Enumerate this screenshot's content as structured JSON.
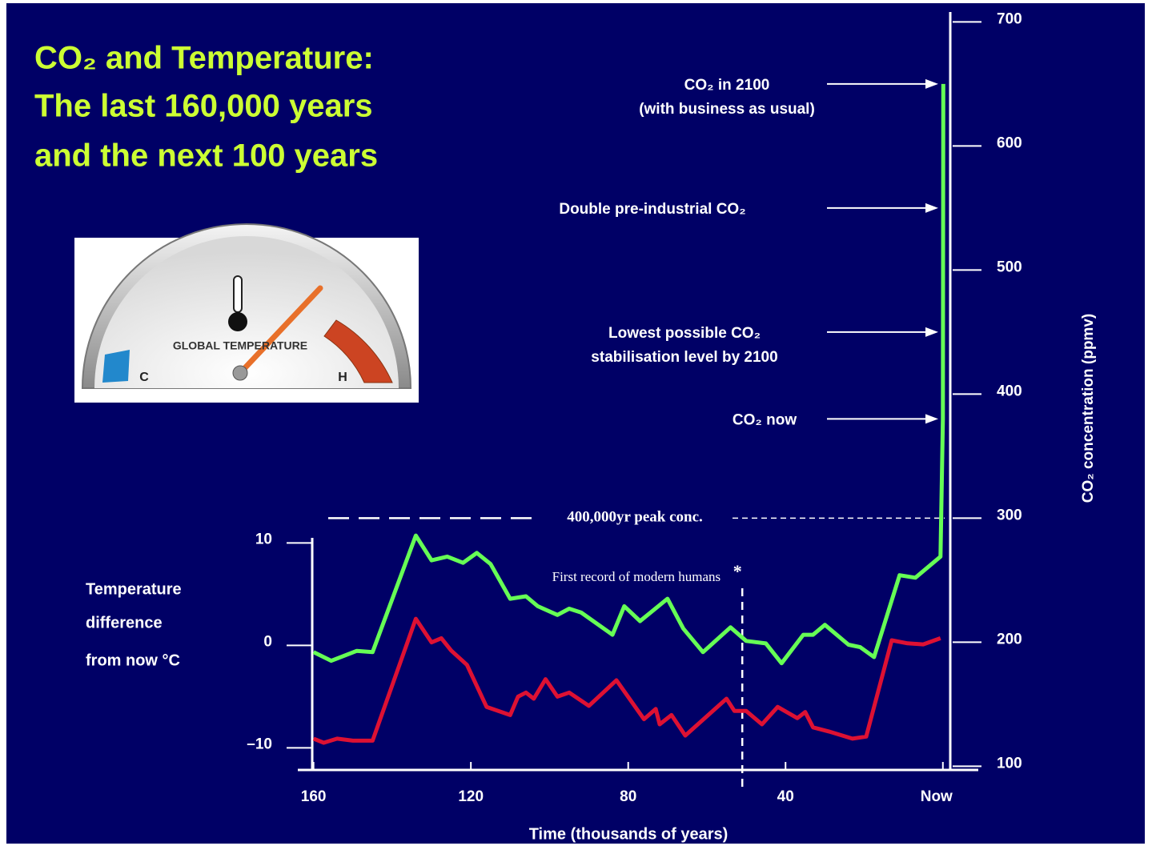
{
  "chart_data": {
    "type": "line",
    "title": [
      "CO₂ and Temperature:",
      "The last 160,000 years",
      "and the next 100 years"
    ],
    "xlabel": "Time (thousands of years)",
    "ylabel": [
      "Temperature",
      "difference",
      "from now °C"
    ],
    "y2label": "CO₂ concentration (ppmv)",
    "xlim": [
      164,
      -9
    ],
    "xticks": [
      160,
      120,
      80,
      40,
      {
        "value": 0,
        "label": "Now"
      }
    ],
    "ylim": [
      -12,
      10.5
    ],
    "yticks": [
      10,
      0,
      {
        "value": -10,
        "label": "–10"
      }
    ],
    "y2lim": [
      97,
      708
    ],
    "y2ticks": [
      100,
      200,
      300,
      400,
      500,
      600,
      700
    ],
    "series": [
      {
        "color": "#66ff55",
        "axis": "y2",
        "x": [
          160,
          155.5,
          149,
          145,
          134,
          130,
          126,
          122,
          118.5,
          115,
          110,
          106,
          103,
          98,
          95,
          92,
          84,
          81,
          77,
          70,
          66,
          61,
          54,
          50,
          45,
          41,
          35.5,
          33,
          30,
          24,
          21,
          17.5,
          11,
          7,
          0.6,
          0,
          -0.1
        ],
        "values": [
          192,
          185,
          193,
          192,
          286,
          266,
          269,
          264,
          272,
          263,
          235,
          237,
          229,
          222,
          227,
          224,
          206,
          229,
          217,
          235,
          211,
          192,
          212,
          201,
          199,
          183,
          206,
          206,
          214,
          198,
          196,
          188,
          254,
          252,
          269,
          380,
          650
        ]
      },
      {
        "color": "#dd1133",
        "x": [
          160,
          157.4,
          154,
          150,
          145,
          134,
          130,
          127.5,
          125,
          121,
          116,
          110,
          108,
          106,
          104,
          101,
          98,
          95,
          90,
          83,
          76,
          73,
          72,
          69,
          65.5,
          55,
          53,
          50,
          46,
          42,
          37,
          35,
          33,
          29,
          23,
          19.5,
          13,
          9,
          5,
          0.6
        ],
        "values": [
          -9.1,
          -9.5,
          -9.1,
          -9.3,
          -9.3,
          2.6,
          0.3,
          0.7,
          -0.5,
          -1.9,
          -6.0,
          -6.8,
          -5.0,
          -4.6,
          -5.2,
          -3.3,
          -5.0,
          -4.6,
          -5.9,
          -3.4,
          -7.2,
          -6.2,
          -7.7,
          -6.8,
          -8.8,
          -5.2,
          -6.4,
          -6.4,
          -7.7,
          -6.0,
          -7.1,
          -6.5,
          -8.0,
          -8.4,
          -9.1,
          -8.9,
          0.5,
          0.2,
          0.1,
          0.7
        ]
      }
    ],
    "annotations": [
      {
        "text": [
          "CO₂ in 2100",
          "(with business as usual)"
        ],
        "value": 650
      },
      {
        "text": [
          "Double pre-industrial CO₂"
        ],
        "value": 550
      },
      {
        "text": [
          "Lowest possible CO₂",
          "stabilisation level by 2100"
        ],
        "value": 450
      },
      {
        "text": [
          "CO₂  now"
        ],
        "value": 380
      }
    ],
    "peak_line": {
      "label": "400,000yr peak conc.",
      "value": 300
    },
    "humans_line": {
      "label": "First record of modern humans",
      "marker": "*",
      "x": 51
    }
  },
  "gauge": {
    "label": "GLOBAL TEMPERATURE",
    "cold": "C",
    "hot": "H"
  }
}
